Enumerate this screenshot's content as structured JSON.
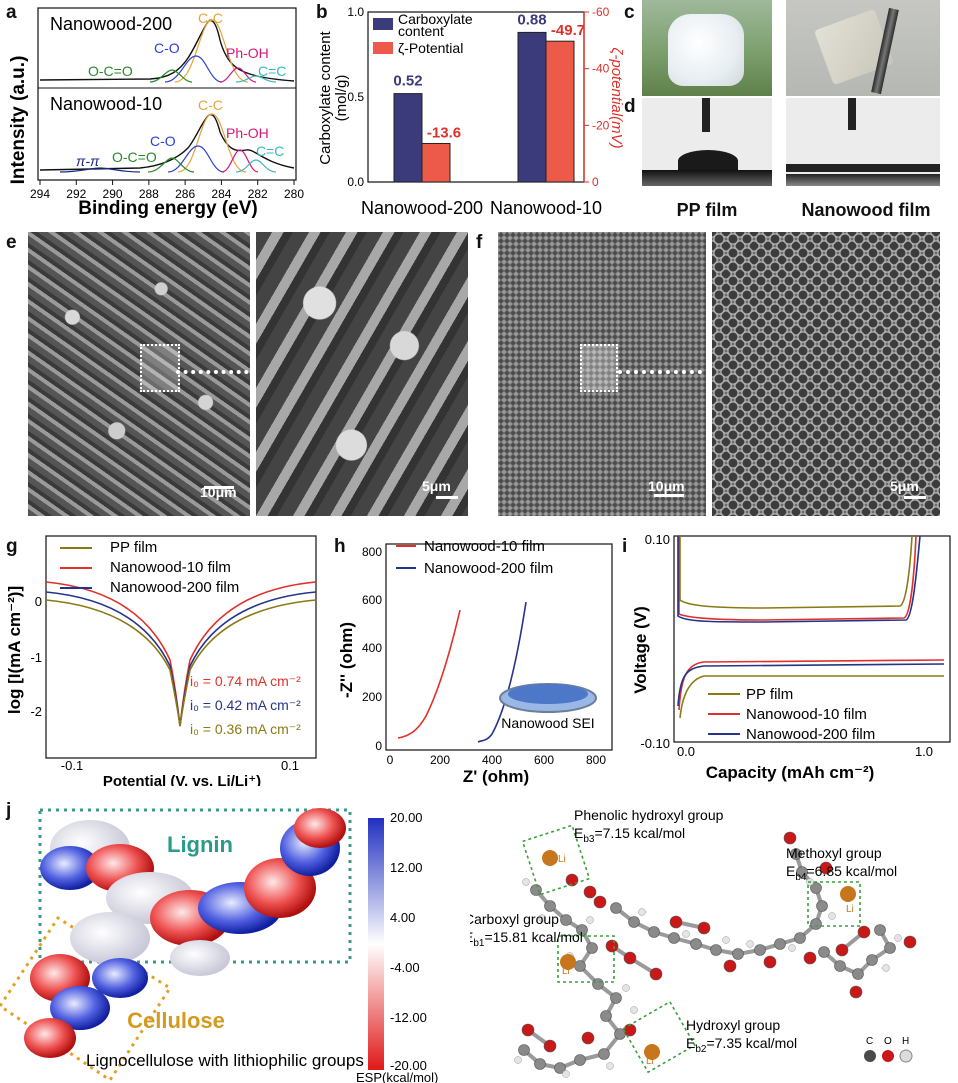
{
  "panels": {
    "a": "a",
    "b": "b",
    "c": "c",
    "d": "d",
    "e": "e",
    "f": "f",
    "g": "g",
    "h": "h",
    "i": "i",
    "j": "j"
  },
  "panel_a": {
    "samples": [
      "Nanowood-200",
      "Nanowood-10"
    ],
    "peaks_top": [
      "C-C",
      "C-O",
      "Ph-OH",
      "O-C=O",
      "C=C"
    ],
    "peaks_bottom": [
      "C-C",
      "C-O",
      "Ph-OH",
      "O-C=O",
      "C=C",
      "π-π"
    ],
    "ylabel": "Intensity (a.u.)",
    "xlabel": "Binding energy (eV)",
    "xticks": [
      "294",
      "292",
      "290",
      "288",
      "286",
      "284",
      "282",
      "280"
    ],
    "colors": {
      "C-C": "#e8a33a",
      "C-O": "#2a3fd4",
      "Ph-OH": "#d6187a",
      "O-C=O": "#2a8a2a",
      "C=C": "#3bb9b9",
      "pi": "#1a2a8a"
    }
  },
  "chart_data": {
    "type": "bar",
    "categories": [
      "Nanowood-200",
      "Nanowood-10"
    ],
    "series": [
      {
        "name": "Carboxylate content",
        "values": [
          0.52,
          0.88
        ],
        "labels": [
          "0.52",
          "0.88"
        ],
        "color": "#3b3a7a"
      },
      {
        "name": "ζ-Potential",
        "values": [
          -13.6,
          -49.7
        ],
        "labels": [
          "-13.6",
          "-49.7"
        ],
        "color": "#ee5a4a"
      }
    ],
    "ylabel_left": "Carboxylate content (mol/g)",
    "ylabel_right": "ζ-potential(mV)",
    "yticks_left": [
      "0.0",
      "0.5",
      "1.0"
    ],
    "yticks_right": [
      "0",
      "-20",
      "-40",
      "-60"
    ],
    "ylim_left": [
      0,
      1.0
    ],
    "ylim_right": [
      0,
      -60
    ]
  },
  "panel_d": {
    "captions": [
      "PP film",
      "Nanowood film"
    ]
  },
  "panel_e": {
    "scale_bars": [
      "10μm",
      "5μm"
    ]
  },
  "panel_f": {
    "scale_bars": [
      "10μm",
      "5μm"
    ]
  },
  "panel_g": {
    "legend": [
      "PP film",
      "Nanowood-10 film",
      "Nanowood-200 film"
    ],
    "annotations": [
      "i₀ = 0.74 mA cm⁻²",
      "i₀ = 0.42 mA cm⁻²",
      "i₀ = 0.36 mA cm⁻²"
    ],
    "xlabel": "Potential (V, vs. Li/Li⁺)",
    "ylabel": "log [I(mA cm⁻²)]",
    "xticks": [
      "-0.1",
      "0.1"
    ],
    "yticks": [
      "0",
      "-1",
      "-2"
    ],
    "colors": [
      "#8a7a14",
      "#e0302a",
      "#24348a"
    ]
  },
  "panel_h": {
    "legend": [
      "Nanowood-10 film",
      "Nanowood-200 film"
    ],
    "xlabel": "Z' (ohm)",
    "ylabel": "-Z'' (ohm)",
    "xticks": [
      "0",
      "200",
      "400",
      "600",
      "800"
    ],
    "yticks": [
      "0",
      "200",
      "400",
      "600",
      "800"
    ],
    "inset": "Nanowood SEI"
  },
  "panel_i": {
    "legend": [
      "PP film",
      "Nanowood-10 film",
      "Nanowood-200 film"
    ],
    "xlabel": "Capacity (mAh cm⁻²)",
    "ylabel": "Voltage (V)",
    "yticks": [
      "0.10",
      "-0.10"
    ],
    "xticks": [
      "0.0",
      "1.0"
    ]
  },
  "panel_j": {
    "lignin": "Lignin",
    "cellulose": "Cellulose",
    "caption": "Lignocellulose with lithiophilic groups",
    "colorbar_ticks": [
      "20.00",
      "12.00",
      "4.00",
      "-4.00",
      "-12.00",
      "-20.00"
    ],
    "colorbar_label": "ESP(kcal/mol)",
    "groups": [
      {
        "name": "Phenolic hydroxyl group",
        "energy": "E",
        "sub": "b3",
        "value": "=7.15 kcal/mol"
      },
      {
        "name": "Methoxyl group",
        "energy": "E",
        "sub": "b4",
        "value": "=6.85 kcal/mol"
      },
      {
        "name": "Carboxyl group",
        "energy": "E",
        "sub": "b1",
        "value": "=15.81 kcal/mol"
      },
      {
        "name": "Hydroxyl group",
        "energy": "E",
        "sub": "b2",
        "value": "=7.35 kcal/mol"
      }
    ],
    "li": "Li",
    "atoms": [
      "C",
      "O",
      "H"
    ]
  }
}
